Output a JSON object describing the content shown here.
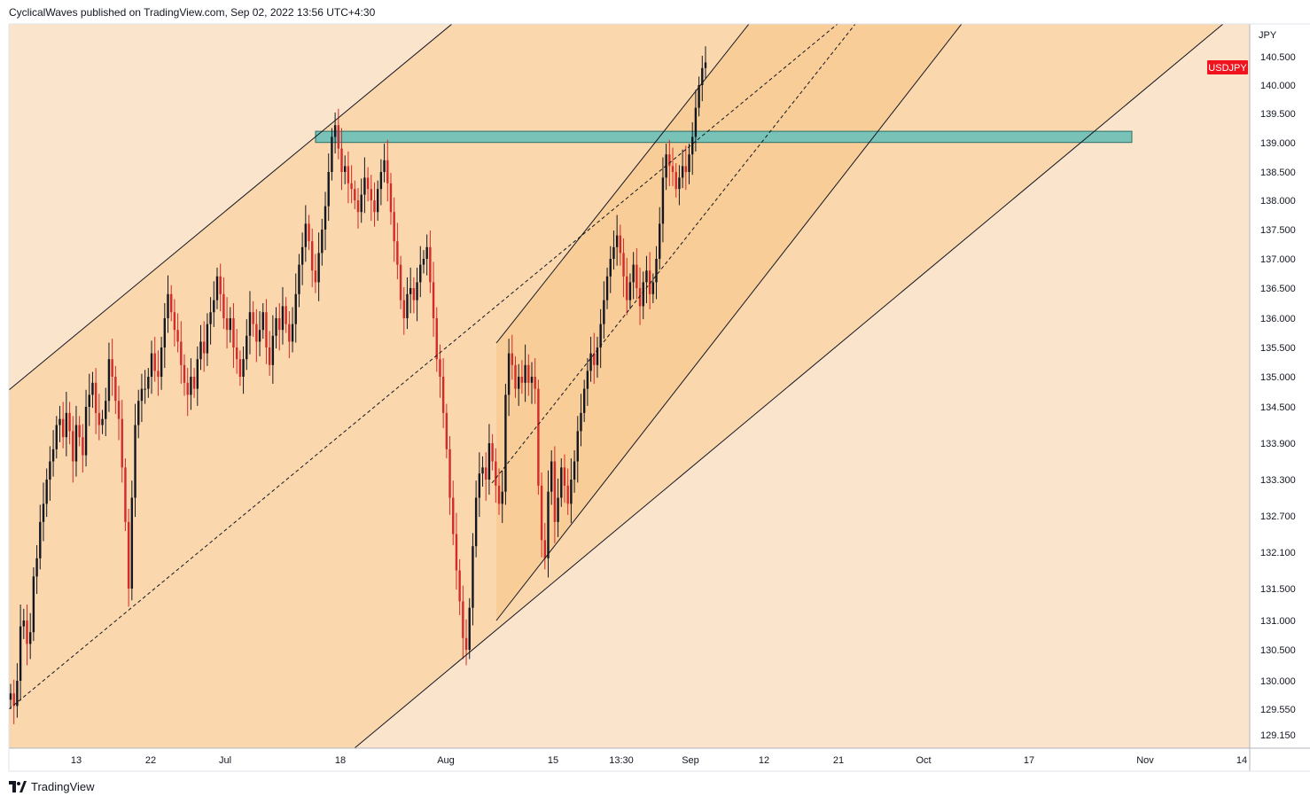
{
  "header": {
    "text": "CyclicalWaves published on TradingView.com, Sep 02, 2022 13:56 UTC+4:30"
  },
  "footer": {
    "brand": "TradingView",
    "logo_icon": "tradingview-logo-icon"
  },
  "colors": {
    "background_band": "#fbe4cc",
    "channel_fill": "#fad7ad",
    "inner_channel_fill": "#f9cd98",
    "resistance_zone_fill": "#79c2b8",
    "up_candle": "#131722",
    "down_candle": "#d32a2a",
    "badge": "#f0141e",
    "line": "#131722"
  },
  "chart_data": {
    "type": "candlestick",
    "symbol_badge": "USDJPY",
    "currency_label": "JPY",
    "y_ticks": [
      "140.500",
      "140.000",
      "139.500",
      "139.000",
      "138.500",
      "138.000",
      "137.500",
      "137.000",
      "136.500",
      "136.000",
      "135.500",
      "135.000",
      "134.500",
      "133.900",
      "133.300",
      "132.700",
      "132.100",
      "131.500",
      "131.000",
      "130.500",
      "130.000",
      "129.550",
      "129.150"
    ],
    "x_ticks": [
      "13",
      "22",
      "Jul",
      "18",
      "Aug",
      "15",
      "13:30",
      "Sep",
      "12",
      "21",
      "Oct",
      "17",
      "Nov",
      "14"
    ],
    "price_range": [
      128.8,
      140.9
    ],
    "resistance_zone": [
      139.05,
      139.15
    ],
    "series": [
      {
        "name": "",
        "values": [
          129.8,
          129.6,
          130.0,
          130.9,
          131.0,
          130.6,
          130.8,
          131.7,
          132.0,
          132.6,
          132.9,
          133.3,
          133.6,
          133.8,
          134.2,
          134.3,
          134.0,
          134.4,
          134.1,
          133.6,
          134.2,
          134.0,
          133.7,
          134.5,
          134.7,
          134.9,
          134.4,
          134.2,
          134.3,
          134.6,
          135.3,
          135.0,
          134.6,
          134.3,
          133.5,
          132.6,
          131.5,
          133.0,
          134.2,
          134.6,
          134.8,
          134.8,
          135.0,
          135.4,
          135.1,
          135.0,
          135.5,
          136.0,
          136.4,
          136.1,
          135.8,
          135.6,
          135.2,
          134.9,
          134.7,
          135.0,
          134.8,
          135.3,
          135.6,
          135.4,
          135.9,
          136.1,
          136.3,
          136.7,
          136.4,
          136.0,
          135.8,
          136.0,
          135.5,
          135.3,
          135.0,
          135.3,
          135.7,
          136.1,
          135.9,
          135.6,
          135.8,
          136.1,
          135.5,
          135.2,
          135.7,
          136.0,
          135.8,
          136.2,
          135.9,
          135.6,
          135.9,
          136.4,
          136.9,
          137.2,
          137.6,
          137.3,
          136.8,
          136.6,
          137.1,
          137.5,
          137.9,
          138.5,
          139.1,
          139.3,
          138.9,
          138.5,
          138.6,
          138.3,
          138.2,
          138.0,
          137.8,
          138.1,
          138.4,
          138.2,
          138.0,
          137.8,
          138.2,
          138.5,
          138.7,
          138.3,
          137.8,
          137.3,
          136.9,
          136.3,
          136.0,
          136.4,
          136.5,
          136.3,
          136.6,
          136.9,
          137.0,
          137.2,
          136.6,
          136.0,
          135.3,
          135.0,
          134.4,
          133.8,
          133.0,
          132.4,
          131.8,
          131.3,
          130.7,
          130.5,
          131.2,
          132.2,
          133.0,
          133.4,
          133.5,
          133.3,
          133.9,
          133.6,
          133.2,
          132.9,
          133.1,
          134.7,
          135.4,
          135.2,
          134.8,
          135.0,
          134.9,
          135.2,
          134.9,
          135.0,
          134.8,
          133.2,
          132.3,
          132.0,
          133.1,
          133.6,
          132.6,
          133.0,
          133.5,
          133.2,
          132.9,
          133.3,
          133.6,
          134.1,
          134.4,
          134.8,
          135.1,
          135.4,
          135.2,
          135.5,
          135.9,
          136.3,
          136.7,
          137.0,
          137.2,
          137.4,
          137.1,
          136.7,
          136.3,
          136.6,
          136.9,
          136.5,
          136.2,
          136.6,
          136.8,
          136.4,
          136.6,
          137.0,
          137.6,
          138.4,
          138.8,
          138.6,
          138.5,
          138.2,
          138.4,
          138.6,
          138.5,
          138.8,
          139.1,
          139.6,
          140.0,
          140.3,
          140.4
        ]
      }
    ]
  }
}
